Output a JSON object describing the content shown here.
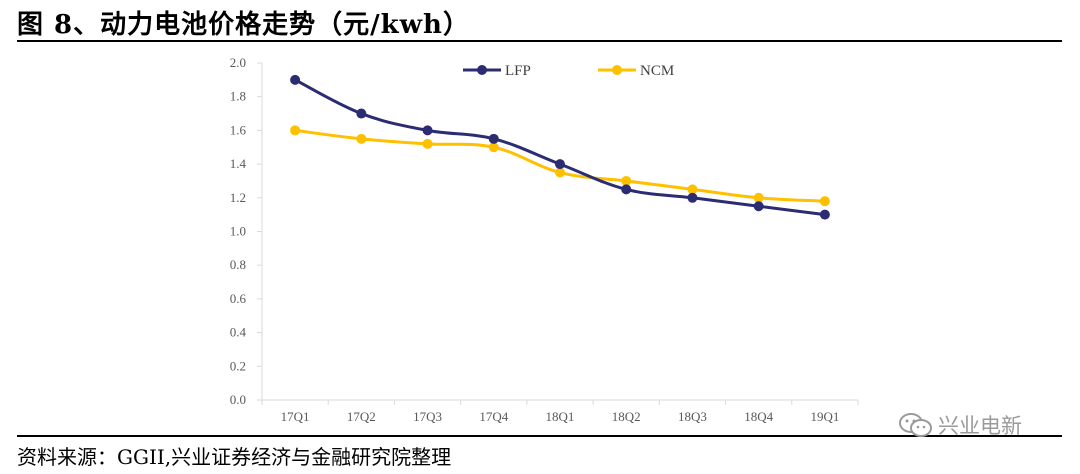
{
  "title": "图 8、动力电池价格走势（元/kwh）",
  "source": "资料来源：GGII,兴业证券经济与金融研究院整理",
  "watermark": "兴业电新",
  "colors": {
    "lfp": "#2B2C72",
    "ncm": "#FFC000",
    "axis": "#D9D9D9",
    "tick_text": "#595959"
  },
  "chart_data": {
    "type": "line",
    "title": "动力电池价格走势（元/kwh）",
    "xlabel": "",
    "ylabel": "",
    "categories": [
      "17Q1",
      "17Q2",
      "17Q3",
      "17Q4",
      "18Q1",
      "18Q2",
      "18Q3",
      "18Q4",
      "19Q1"
    ],
    "ylim": [
      0,
      2.0
    ],
    "yticks": [
      "0.0",
      "0.2",
      "0.4",
      "0.6",
      "0.8",
      "1.0",
      "1.2",
      "1.4",
      "1.6",
      "1.8",
      "2.0"
    ],
    "grid": false,
    "legend_position": "top",
    "series": [
      {
        "name": "LFP",
        "values": [
          1.9,
          1.7,
          1.6,
          1.55,
          1.4,
          1.25,
          1.2,
          1.15,
          1.1
        ]
      },
      {
        "name": "NCM",
        "values": [
          1.6,
          1.55,
          1.52,
          1.5,
          1.35,
          1.3,
          1.25,
          1.2,
          1.18
        ]
      }
    ]
  }
}
